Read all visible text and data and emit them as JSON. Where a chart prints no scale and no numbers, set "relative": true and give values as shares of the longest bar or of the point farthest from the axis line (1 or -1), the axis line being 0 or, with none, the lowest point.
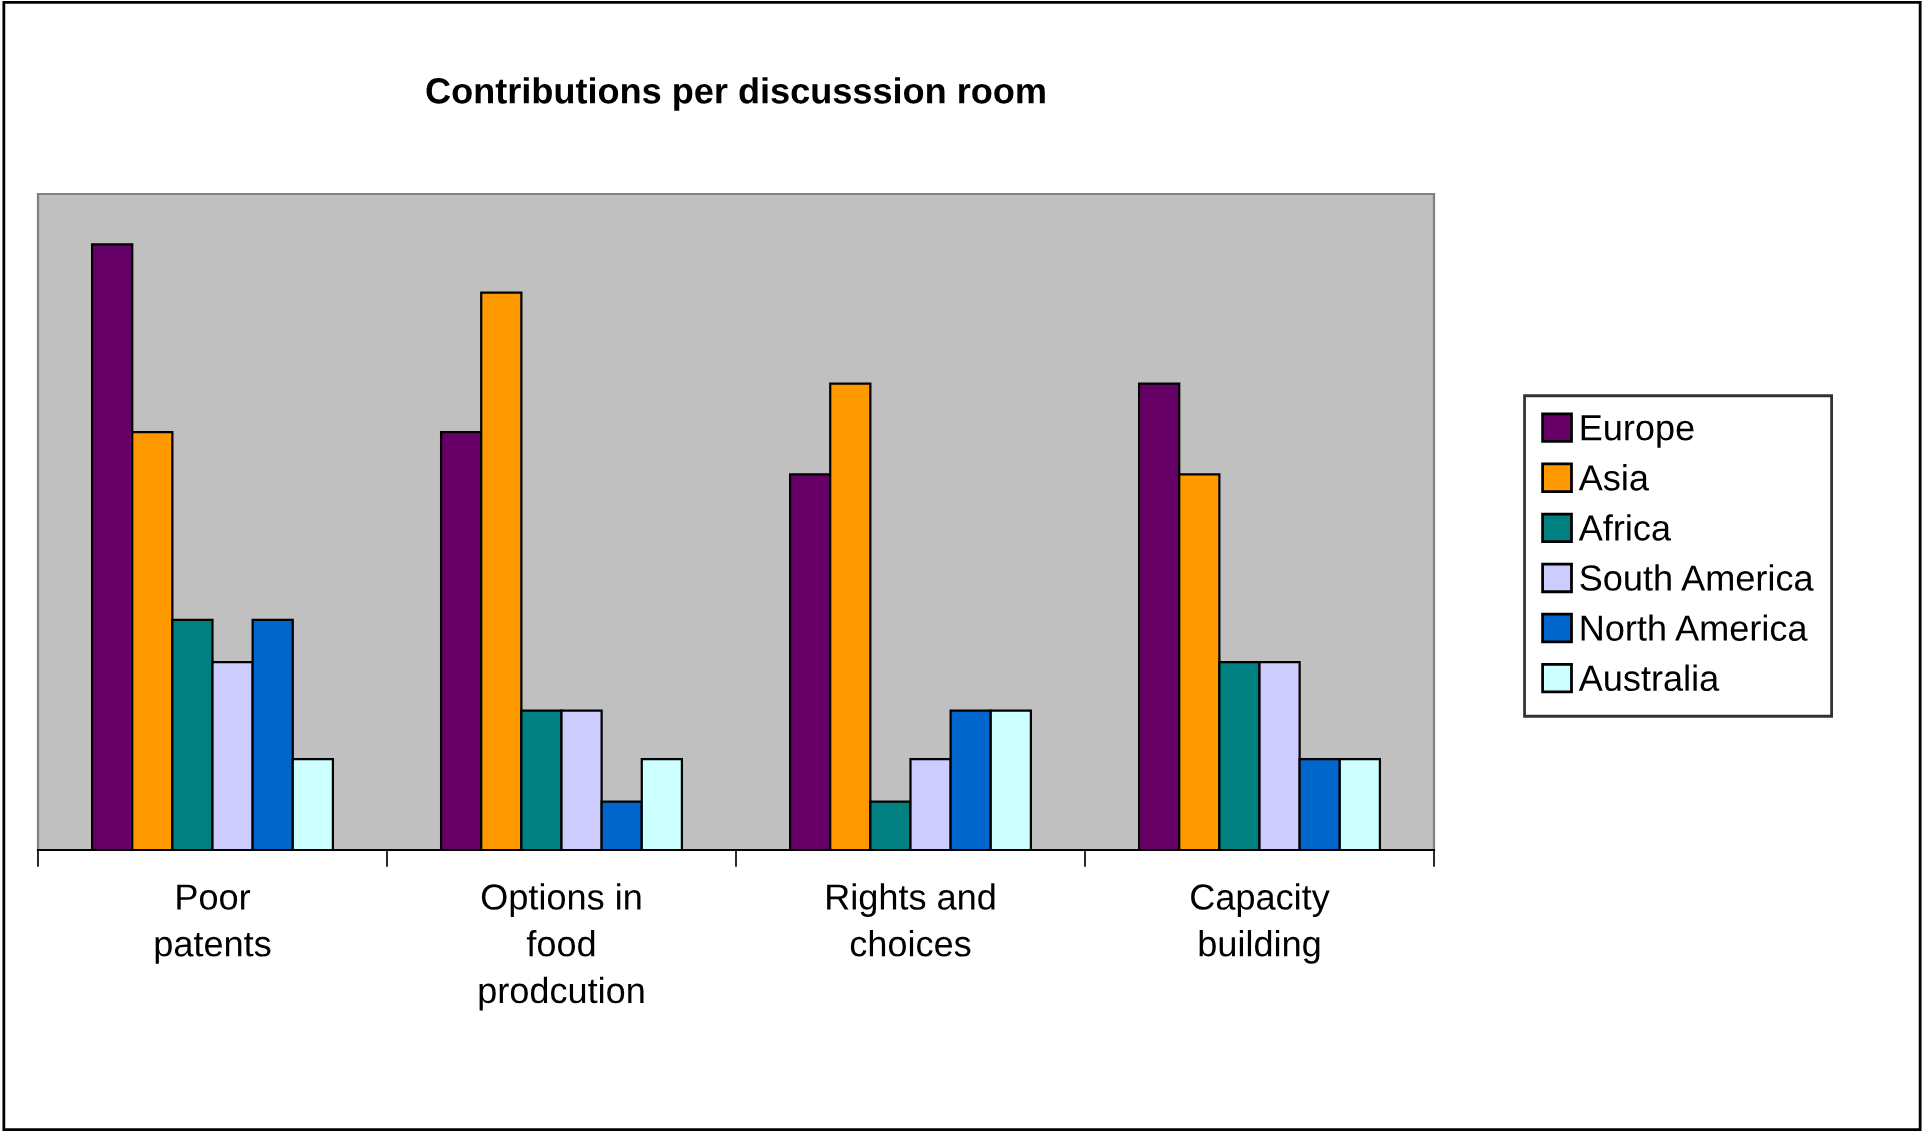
{
  "chart_data": {
    "type": "bar",
    "title": "Contributions per discusssion room",
    "relative": true,
    "categories": [
      "Poor patents",
      "Options in food prodcution",
      "Rights and choices",
      "Capacity building"
    ],
    "series": [
      {
        "name": "Europe",
        "color": "#660066",
        "values": [
          1,
          0.69,
          0.62,
          0.77
        ]
      },
      {
        "name": "Asia",
        "color": "#ff9900",
        "values": [
          0.69,
          0.92,
          0.77,
          0.62
        ]
      },
      {
        "name": "Africa",
        "color": "#008080",
        "values": [
          0.38,
          0.23,
          0.08,
          0.31
        ]
      },
      {
        "name": "South America",
        "color": "#ccccff",
        "values": [
          0.31,
          0.23,
          0.15,
          0.31
        ]
      },
      {
        "name": "North America",
        "color": "#0066cc",
        "values": [
          0.38,
          0.08,
          0.23,
          0.15
        ]
      },
      {
        "name": "Australia",
        "color": "#ccffff",
        "values": [
          0.15,
          0.15,
          0.23,
          0.15
        ]
      }
    ],
    "legend": "right",
    "grid": false
  }
}
